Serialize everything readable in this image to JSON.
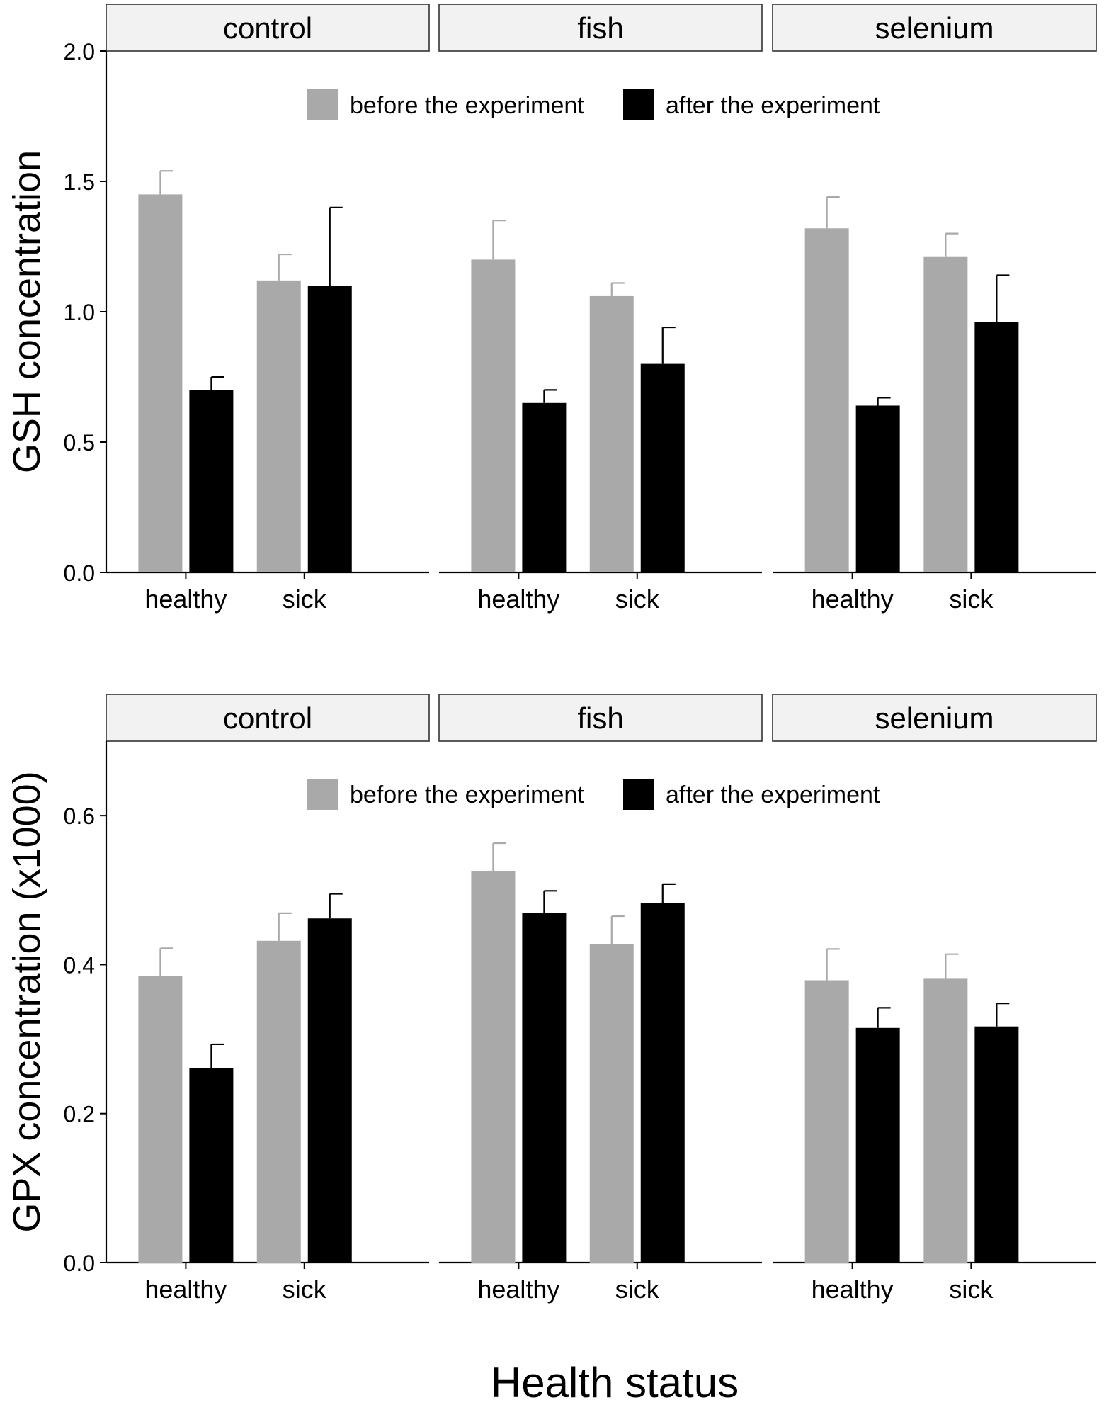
{
  "chart_data": [
    {
      "type": "bar",
      "ylabel": "GSH concentration",
      "xlabel": "Health status",
      "ylim": [
        0,
        2.0
      ],
      "yticks": [
        "0.0",
        "0.5",
        "1.0",
        "1.5",
        "2.0"
      ],
      "ytick_values": [
        0,
        0.5,
        1.0,
        1.5,
        2.0
      ],
      "panels": [
        "control",
        "fish",
        "selenium"
      ],
      "categories": [
        "healthy",
        "sick"
      ],
      "legend": {
        "placement": "top-center",
        "entries": [
          "before the experiment",
          "after the experiment"
        ]
      },
      "colors": {
        "before": "#a9a9a9",
        "after": "#000000"
      },
      "series": [
        {
          "name": "before the experiment",
          "values": [
            [
              1.45,
              1.12
            ],
            [
              1.2,
              1.06
            ],
            [
              1.32,
              1.21
            ]
          ],
          "errors": [
            [
              0.09,
              0.1
            ],
            [
              0.15,
              0.05
            ],
            [
              0.12,
              0.09
            ]
          ]
        },
        {
          "name": "after the experiment",
          "values": [
            [
              0.7,
              1.1
            ],
            [
              0.65,
              0.8
            ],
            [
              0.64,
              0.96
            ]
          ],
          "errors": [
            [
              0.05,
              0.3
            ],
            [
              0.05,
              0.14
            ],
            [
              0.03,
              0.18
            ]
          ]
        }
      ]
    },
    {
      "type": "bar",
      "ylabel": "GPX concentration (x1000)",
      "xlabel": "Health status",
      "ylim": [
        0,
        0.7
      ],
      "yticks": [
        "0.0",
        "0.2",
        "0.4",
        "0.6"
      ],
      "ytick_values": [
        0,
        0.2,
        0.4,
        0.6
      ],
      "panels": [
        "control",
        "fish",
        "selenium"
      ],
      "categories": [
        "healthy",
        "sick"
      ],
      "legend": {
        "placement": "top-center",
        "entries": [
          "before the experiment",
          "after the experiment"
        ]
      },
      "colors": {
        "before": "#a9a9a9",
        "after": "#000000"
      },
      "series": [
        {
          "name": "before the experiment",
          "values": [
            [
              0.385,
              0.432
            ],
            [
              0.526,
              0.428
            ],
            [
              0.379,
              0.381
            ]
          ],
          "errors": [
            [
              0.037,
              0.037
            ],
            [
              0.037,
              0.037
            ],
            [
              0.042,
              0.033
            ]
          ]
        },
        {
          "name": "after the experiment",
          "values": [
            [
              0.261,
              0.462
            ],
            [
              0.469,
              0.483
            ],
            [
              0.315,
              0.317
            ]
          ],
          "errors": [
            [
              0.032,
              0.033
            ],
            [
              0.03,
              0.025
            ],
            [
              0.027,
              0.031
            ]
          ]
        }
      ]
    }
  ],
  "shared_xlabel": "Health status"
}
